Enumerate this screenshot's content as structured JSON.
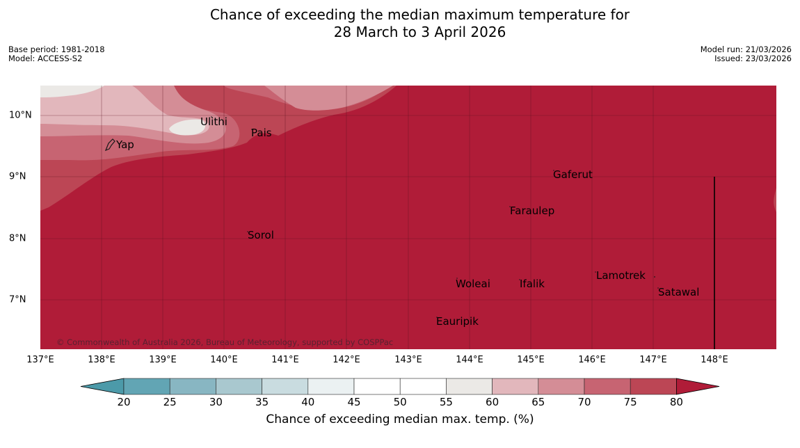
{
  "title": {
    "line1": "Chance of exceeding the median maximum temperature for",
    "line2": "28 March to 3 April 2026"
  },
  "meta": {
    "base_period": "Base period: 1981-2018",
    "model": "Model: ACCESS-S2",
    "model_run": "Model run: 21/03/2026",
    "issued": "Issued: 23/03/2026"
  },
  "axes": {
    "lon_labels": [
      "137°E",
      "138°E",
      "139°E",
      "140°E",
      "141°E",
      "142°E",
      "143°E",
      "144°E",
      "145°E",
      "146°E",
      "147°E",
      "148°E"
    ],
    "lat_labels": [
      "10°N",
      "9°N",
      "8°N",
      "7°N"
    ]
  },
  "places": {
    "ulithi": "Ulithi",
    "pais": "Pais",
    "yap": "Yap",
    "gaferut": "Gaferut",
    "faraulep": "Faraulep",
    "sorol": "Sorol",
    "lamotrek": "Lamotrek",
    "woleai": "Woleai",
    "ifalik": "Ifalik",
    "satawal": "Satawal",
    "eauripik": "Eauripik"
  },
  "copyright": "© Commonwealth of Australia 2026, Bureau of Meteorology, supported by COSPPac",
  "colorbar": {
    "ticks": [
      "20",
      "25",
      "30",
      "35",
      "40",
      "45",
      "50",
      "55",
      "60",
      "65",
      "70",
      "75",
      "80"
    ],
    "label": "Chance of exceeding median max. temp. (%)",
    "colors": [
      "#62a5b4",
      "#88b6c2",
      "#a9c8cf",
      "#c9dce0",
      "#ebf1f2",
      "#ffffff",
      "#ffffff",
      "#ebe9e6",
      "#e2b7bc",
      "#d48d96",
      "#c76472",
      "#bc4655"
    ],
    "under_color": "#4c9aa9",
    "over_color": "#b01c38"
  },
  "colors": {
    "dominant": "#b01c38",
    "band_75_80": "#bc4655",
    "band_70_75": "#c76472",
    "band_65_70": "#d48d96",
    "band_60_65": "#e2b7bc",
    "band_55_60": "#ebe9e6"
  }
}
